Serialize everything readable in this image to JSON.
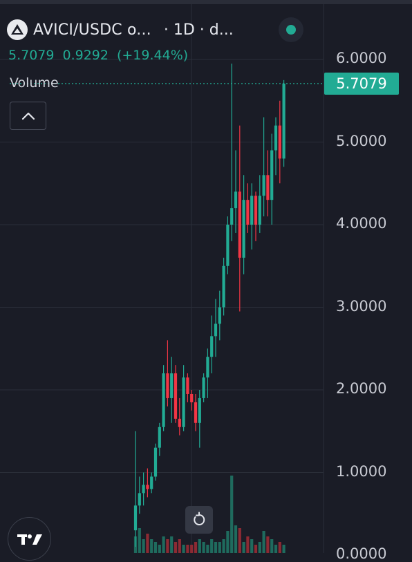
{
  "header": {
    "symbol": "AVICI/USDC o...",
    "interval": "· 1D · d..."
  },
  "ohlc": {
    "last": "5.7079",
    "change": "0.9292",
    "change_pct": "(+19.44%)"
  },
  "volume_label": "Volume",
  "price_tag": "5.7079",
  "icons": {
    "logo": "avici-logo-icon",
    "collapse": "chevron-up-icon",
    "reset": "reset-icon",
    "brand": "tradingview-logo-icon"
  },
  "colors": {
    "background": "#1a1c26",
    "up": "#22ab94",
    "down": "#f23645",
    "volume_up": "#1f6b5e",
    "volume_down": "#8c2a33",
    "grid": "#2a2e39"
  },
  "chart_data": {
    "type": "candlestick",
    "title": "AVICI/USDC",
    "yaxis_ticks": [
      "6.0000",
      "5.0000",
      "4.0000",
      "3.0000",
      "2.0000",
      "1.0000",
      "0.0000"
    ],
    "ylim": [
      0,
      6.1
    ],
    "last_price": 5.7079,
    "candles": [
      {
        "o": 0.3,
        "h": 1.5,
        "l": 0.1,
        "c": 0.6
      },
      {
        "o": 0.6,
        "h": 0.95,
        "l": 0.5,
        "c": 0.75
      },
      {
        "o": 0.75,
        "h": 1.0,
        "l": 0.6,
        "c": 0.85
      },
      {
        "o": 0.85,
        "h": 1.05,
        "l": 0.7,
        "c": 0.8
      },
      {
        "o": 0.8,
        "h": 1.0,
        "l": 0.75,
        "c": 0.95
      },
      {
        "o": 0.95,
        "h": 1.35,
        "l": 0.9,
        "c": 1.3
      },
      {
        "o": 1.3,
        "h": 1.6,
        "l": 1.2,
        "c": 1.55
      },
      {
        "o": 1.55,
        "h": 2.3,
        "l": 1.5,
        "c": 2.2
      },
      {
        "o": 2.2,
        "h": 2.6,
        "l": 1.8,
        "c": 1.9
      },
      {
        "o": 1.9,
        "h": 2.4,
        "l": 1.6,
        "c": 2.2
      },
      {
        "o": 2.2,
        "h": 2.3,
        "l": 1.6,
        "c": 1.65
      },
      {
        "o": 1.65,
        "h": 1.9,
        "l": 1.45,
        "c": 1.55
      },
      {
        "o": 1.55,
        "h": 2.3,
        "l": 1.5,
        "c": 2.15
      },
      {
        "o": 2.15,
        "h": 2.2,
        "l": 1.85,
        "c": 1.95
      },
      {
        "o": 1.95,
        "h": 2.0,
        "l": 1.75,
        "c": 1.85
      },
      {
        "o": 1.85,
        "h": 1.95,
        "l": 1.5,
        "c": 1.6
      },
      {
        "o": 1.6,
        "h": 2.0,
        "l": 1.3,
        "c": 1.9
      },
      {
        "o": 1.9,
        "h": 2.2,
        "l": 1.85,
        "c": 2.15
      },
      {
        "o": 2.15,
        "h": 2.5,
        "l": 1.9,
        "c": 2.4
      },
      {
        "o": 2.4,
        "h": 2.9,
        "l": 2.2,
        "c": 2.65
      },
      {
        "o": 2.65,
        "h": 3.1,
        "l": 2.4,
        "c": 2.8
      },
      {
        "o": 2.8,
        "h": 3.2,
        "l": 2.6,
        "c": 3.0
      },
      {
        "o": 3.0,
        "h": 3.6,
        "l": 2.9,
        "c": 3.5
      },
      {
        "o": 3.5,
        "h": 4.1,
        "l": 3.4,
        "c": 4.0
      },
      {
        "o": 4.0,
        "h": 5.95,
        "l": 3.8,
        "c": 4.2
      },
      {
        "o": 4.2,
        "h": 4.9,
        "l": 3.9,
        "c": 4.4
      },
      {
        "o": 4.4,
        "h": 5.2,
        "l": 2.95,
        "c": 3.6
      },
      {
        "o": 3.6,
        "h": 4.6,
        "l": 3.4,
        "c": 4.3
      },
      {
        "o": 4.3,
        "h": 4.5,
        "l": 3.9,
        "c": 4.0
      },
      {
        "o": 4.0,
        "h": 4.5,
        "l": 3.7,
        "c": 4.35
      },
      {
        "o": 4.35,
        "h": 4.4,
        "l": 3.8,
        "c": 4.0
      },
      {
        "o": 4.0,
        "h": 4.6,
        "l": 3.9,
        "c": 4.35
      },
      {
        "o": 4.35,
        "h": 5.3,
        "l": 4.1,
        "c": 4.6
      },
      {
        "o": 4.6,
        "h": 4.9,
        "l": 4.1,
        "c": 4.3
      },
      {
        "o": 4.3,
        "h": 5.1,
        "l": 4.0,
        "c": 4.9
      },
      {
        "o": 4.9,
        "h": 5.3,
        "l": 4.6,
        "c": 5.2
      },
      {
        "o": 5.2,
        "h": 5.5,
        "l": 4.5,
        "c": 4.8
      },
      {
        "o": 4.8,
        "h": 5.75,
        "l": 4.7,
        "c": 5.7079
      }
    ],
    "volume": [
      0.6,
      0.9,
      0.5,
      0.7,
      0.5,
      0.4,
      0.3,
      0.6,
      0.5,
      0.6,
      0.4,
      0.5,
      0.3,
      0.3,
      0.3,
      0.4,
      0.5,
      0.4,
      0.3,
      0.5,
      0.4,
      0.4,
      0.5,
      0.8,
      2.8,
      1.0,
      0.9,
      0.4,
      0.6,
      0.5,
      0.3,
      0.4,
      0.8,
      0.6,
      0.5,
      0.3,
      0.4,
      0.3
    ]
  }
}
